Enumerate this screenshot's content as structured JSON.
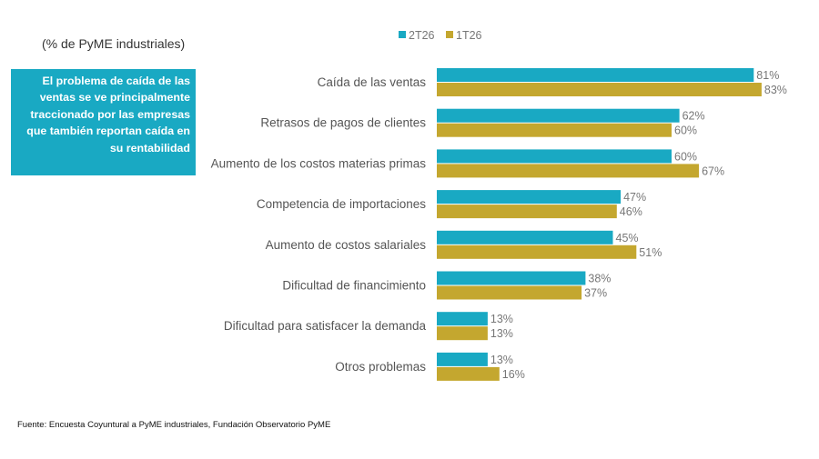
{
  "subtitle": "(% de PyME industriales)",
  "callout": "El problema de caída de las ventas se ve principalmente traccionado por las empresas que también reportan caída en su rentabilidad",
  "source": "Fuente: Encuesta Coyuntural a PyME industriales, Fundación Observatorio PyME",
  "colors": {
    "2T26": "#19a9c3",
    "1T26": "#c4a72f",
    "callout_bg": "#19a9c3"
  },
  "chart_data": {
    "type": "bar",
    "orientation": "horizontal",
    "categories": [
      "Caída de las ventas",
      "Retrasos de pagos de clientes",
      "Aumento de los costos materias primas",
      "Competencia de importaciones",
      "Aumento de costos salariales",
      "Dificultad de financimiento",
      "Dificultad para satisfacer la demanda",
      "Otros problemas"
    ],
    "series": [
      {
        "name": "2T26",
        "values": [
          81,
          62,
          60,
          47,
          45,
          38,
          13,
          13
        ]
      },
      {
        "name": "1T26",
        "values": [
          83,
          60,
          67,
          46,
          51,
          37,
          13,
          16
        ]
      }
    ],
    "unit": "%",
    "xlim": [
      0,
      100
    ],
    "grid": false,
    "legend": "top"
  }
}
